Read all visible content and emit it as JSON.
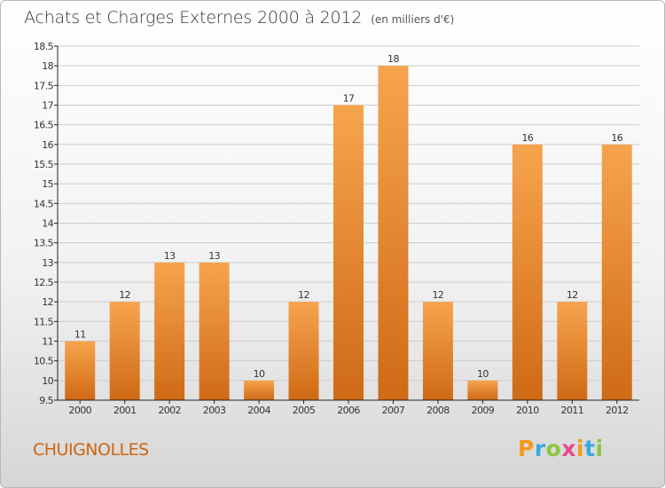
{
  "header": {
    "title": "Achats et Charges Externes 2000 à 2012",
    "unit": "(en milliers d'€)"
  },
  "footer": {
    "commune": "CHUIGNOLLES",
    "logo_letters": [
      "P",
      "r",
      "o",
      "x",
      "i",
      "t",
      "i"
    ],
    "logo_colors": [
      "#f29b1d",
      "#3aa9e0",
      "#8cc63f",
      "#e94a8b",
      "#f29b1d",
      "#3aa9e0",
      "#8cc63f"
    ]
  },
  "colors": {
    "bar_light": "#f7a44e",
    "bar_dark": "#cf6a16",
    "grid": "#cccccc",
    "axis": "#222222",
    "label": "#333333"
  },
  "chart_data": {
    "type": "bar",
    "title": "Achats et Charges Externes 2000 à 2012",
    "subtitle": "(en milliers d'€)",
    "categories": [
      "2000",
      "2001",
      "2002",
      "2003",
      "2004",
      "2005",
      "2006",
      "2007",
      "2008",
      "2009",
      "2010",
      "2011",
      "2012"
    ],
    "values": [
      11,
      12,
      13,
      13,
      10,
      12,
      17,
      18,
      12,
      10,
      16,
      12,
      16
    ],
    "ylim": [
      9.5,
      18.5
    ],
    "yticks": [
      "9.5",
      "10",
      "10.5",
      "11",
      "11.5",
      "12",
      "12.5",
      "13",
      "13.5",
      "14",
      "14.5",
      "15",
      "15.5",
      "16",
      "16.5",
      "17",
      "17.5",
      "18",
      "18.5"
    ],
    "grid": true,
    "legend": "none"
  }
}
